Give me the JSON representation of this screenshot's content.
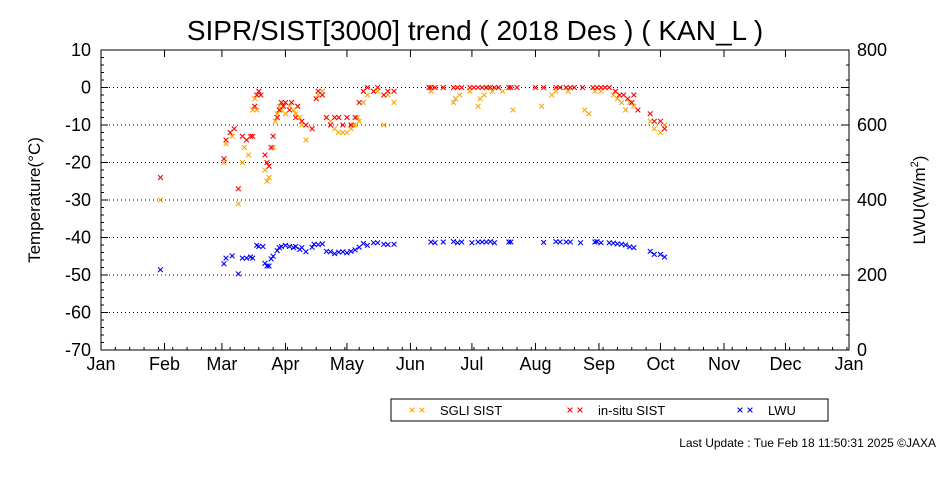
{
  "chart_data": {
    "type": "scatter",
    "title": "SIPR/SIST[3000] trend ( 2018 Des ) ( KAN_L )",
    "xlabel": "",
    "ylabel": "Temperature(°C)",
    "y2label_main": "LWU(W/m",
    "y2label_sup": "2",
    "y2label_close": ")",
    "xlim": [
      0,
      365
    ],
    "ylim": [
      -70,
      10
    ],
    "y2lim": [
      0,
      800
    ],
    "grid": true,
    "grid_style": "dotted",
    "legend_position": "bottom-right",
    "x_ticks": [
      {
        "label": "Jan",
        "x": 0
      },
      {
        "label": "Feb",
        "x": 31
      },
      {
        "label": "Mar",
        "x": 59
      },
      {
        "label": "Apr",
        "x": 90
      },
      {
        "label": "May",
        "x": 120
      },
      {
        "label": "Jun",
        "x": 151
      },
      {
        "label": "Jul",
        "x": 181
      },
      {
        "label": "Aug",
        "x": 212
      },
      {
        "label": "Sep",
        "x": 243
      },
      {
        "label": "Oct",
        "x": 273
      },
      {
        "label": "Nov",
        "x": 304
      },
      {
        "label": "Dec",
        "x": 334
      },
      {
        "label": "Jan",
        "x": 365
      }
    ],
    "y_ticks": [
      10,
      0,
      -10,
      -20,
      -30,
      -40,
      -50,
      -60,
      -70
    ],
    "y2_ticks": [
      800,
      600,
      400,
      200,
      0
    ],
    "series": [
      {
        "name": "SGLI SIST",
        "axis": "left",
        "color": "#ffa500",
        "marker": "x",
        "points": [
          [
            29,
            -30
          ],
          [
            60,
            -20
          ],
          [
            61,
            -15
          ],
          [
            64,
            -13
          ],
          [
            67,
            -31
          ],
          [
            69,
            -20
          ],
          [
            70,
            -16
          ],
          [
            72,
            -18
          ],
          [
            74,
            -6
          ],
          [
            75,
            -3
          ],
          [
            76,
            -6
          ],
          [
            80,
            -22
          ],
          [
            81,
            -25
          ],
          [
            82,
            -24
          ],
          [
            84,
            -16
          ],
          [
            85,
            -9
          ],
          [
            86,
            -7
          ],
          [
            87,
            -5
          ],
          [
            88,
            -6
          ],
          [
            89,
            -5
          ],
          [
            90,
            -7
          ],
          [
            92,
            -5
          ],
          [
            94,
            -6
          ],
          [
            95,
            -7
          ],
          [
            96,
            -5
          ],
          [
            97,
            -8
          ],
          [
            98,
            -10
          ],
          [
            100,
            -14
          ],
          [
            103,
            -11
          ],
          [
            106,
            -2
          ],
          [
            108,
            -1
          ],
          [
            110,
            -8
          ],
          [
            112,
            -9
          ],
          [
            114,
            -11
          ],
          [
            116,
            -12
          ],
          [
            118,
            -12
          ],
          [
            120,
            -12
          ],
          [
            122,
            -11
          ],
          [
            123,
            -10
          ],
          [
            124,
            -10
          ],
          [
            125,
            -8
          ],
          [
            126,
            -9
          ],
          [
            128,
            -4
          ],
          [
            130,
            -2
          ],
          [
            133,
            -1
          ],
          [
            135,
            -1
          ],
          [
            138,
            -10
          ],
          [
            140,
            -2
          ],
          [
            143,
            -4
          ],
          [
            161,
            -1
          ],
          [
            163,
            0
          ],
          [
            167,
            0
          ],
          [
            172,
            -4
          ],
          [
            173,
            -3
          ],
          [
            175,
            -2
          ],
          [
            180,
            -1
          ],
          [
            184,
            -5
          ],
          [
            185,
            -3
          ],
          [
            187,
            -2
          ],
          [
            189,
            0
          ],
          [
            191,
            -1
          ],
          [
            196,
            -1
          ],
          [
            201,
            -6
          ],
          [
            215,
            -5
          ],
          [
            220,
            -2
          ],
          [
            222,
            -1
          ],
          [
            228,
            -1
          ],
          [
            236,
            -6
          ],
          [
            238,
            -7
          ],
          [
            241,
            -1
          ],
          [
            244,
            -1
          ],
          [
            250,
            -2
          ],
          [
            252,
            -3
          ],
          [
            254,
            -4
          ],
          [
            256,
            -6
          ],
          [
            258,
            -4
          ],
          [
            260,
            -5
          ],
          [
            268,
            -9
          ],
          [
            270,
            -11
          ],
          [
            273,
            -12
          ],
          [
            275,
            -10
          ]
        ]
      },
      {
        "name": "in-situ SIST",
        "axis": "left",
        "color": "#ff0000",
        "marker": "x",
        "points": [
          [
            29,
            -24
          ],
          [
            60,
            -19
          ],
          [
            61,
            -14
          ],
          [
            63,
            -12
          ],
          [
            65,
            -11
          ],
          [
            67,
            -27
          ],
          [
            69,
            -13
          ],
          [
            71,
            -14
          ],
          [
            73,
            -13
          ],
          [
            74,
            -13
          ],
          [
            75,
            -5
          ],
          [
            76,
            -2
          ],
          [
            77,
            -1
          ],
          [
            78,
            -2
          ],
          [
            80,
            -18
          ],
          [
            81,
            -20
          ],
          [
            82,
            -21
          ],
          [
            83,
            -16
          ],
          [
            84,
            -13
          ],
          [
            86,
            -8
          ],
          [
            87,
            -6
          ],
          [
            88,
            -4
          ],
          [
            89,
            -5
          ],
          [
            90,
            -4
          ],
          [
            92,
            -6
          ],
          [
            93,
            -4
          ],
          [
            95,
            -8
          ],
          [
            96,
            -5
          ],
          [
            98,
            -9
          ],
          [
            100,
            -10
          ],
          [
            103,
            -11
          ],
          [
            105,
            -3
          ],
          [
            106,
            -1
          ],
          [
            108,
            -2
          ],
          [
            110,
            -8
          ],
          [
            112,
            -10
          ],
          [
            114,
            -8
          ],
          [
            116,
            -8
          ],
          [
            118,
            -10
          ],
          [
            120,
            -8
          ],
          [
            122,
            -10
          ],
          [
            124,
            -8
          ],
          [
            126,
            -4
          ],
          [
            128,
            -1
          ],
          [
            130,
            0
          ],
          [
            133,
            -1
          ],
          [
            135,
            0
          ],
          [
            138,
            -2
          ],
          [
            140,
            -1
          ],
          [
            143,
            -1
          ],
          [
            160,
            0
          ],
          [
            161,
            0
          ],
          [
            163,
            0
          ],
          [
            167,
            0
          ],
          [
            172,
            0
          ],
          [
            174,
            0
          ],
          [
            176,
            0
          ],
          [
            180,
            0
          ],
          [
            182,
            0
          ],
          [
            184,
            0
          ],
          [
            186,
            0
          ],
          [
            188,
            0
          ],
          [
            190,
            0
          ],
          [
            192,
            0
          ],
          [
            194,
            0
          ],
          [
            199,
            0
          ],
          [
            200,
            0
          ],
          [
            203,
            0
          ],
          [
            212,
            0
          ],
          [
            216,
            0
          ],
          [
            222,
            0
          ],
          [
            224,
            0
          ],
          [
            227,
            0
          ],
          [
            229,
            0
          ],
          [
            231,
            0
          ],
          [
            235,
            0
          ],
          [
            240,
            0
          ],
          [
            242,
            0
          ],
          [
            244,
            0
          ],
          [
            246,
            0
          ],
          [
            248,
            0
          ],
          [
            251,
            -1
          ],
          [
            253,
            -2
          ],
          [
            255,
            -2
          ],
          [
            257,
            -3
          ],
          [
            259,
            -4
          ],
          [
            260,
            -2
          ],
          [
            262,
            -6
          ],
          [
            268,
            -7
          ],
          [
            270,
            -9
          ],
          [
            273,
            -9
          ],
          [
            275,
            -11
          ]
        ]
      },
      {
        "name": "LWU",
        "axis": "right",
        "color": "#0000ff",
        "marker": "x",
        "points": [
          [
            29,
            214
          ],
          [
            60,
            230
          ],
          [
            61,
            245
          ],
          [
            64,
            251
          ],
          [
            67,
            203
          ],
          [
            69,
            245
          ],
          [
            71,
            245
          ],
          [
            73,
            248
          ],
          [
            74,
            245
          ],
          [
            76,
            279
          ],
          [
            77,
            276
          ],
          [
            79,
            276
          ],
          [
            80,
            231
          ],
          [
            81,
            224
          ],
          [
            82,
            224
          ],
          [
            83,
            243
          ],
          [
            84,
            250
          ],
          [
            86,
            265
          ],
          [
            87,
            273
          ],
          [
            88,
            276
          ],
          [
            90,
            279
          ],
          [
            92,
            276
          ],
          [
            94,
            273
          ],
          [
            95,
            276
          ],
          [
            97,
            268
          ],
          [
            98,
            273
          ],
          [
            100,
            262
          ],
          [
            103,
            274
          ],
          [
            104,
            282
          ],
          [
            106,
            281
          ],
          [
            108,
            283
          ],
          [
            110,
            263
          ],
          [
            112,
            262
          ],
          [
            114,
            257
          ],
          [
            116,
            261
          ],
          [
            118,
            262
          ],
          [
            120,
            259
          ],
          [
            122,
            263
          ],
          [
            124,
            267
          ],
          [
            126,
            274
          ],
          [
            128,
            284
          ],
          [
            130,
            279
          ],
          [
            133,
            286
          ],
          [
            135,
            286
          ],
          [
            138,
            282
          ],
          [
            140,
            281
          ],
          [
            143,
            282
          ],
          [
            161,
            288
          ],
          [
            163,
            286
          ],
          [
            167,
            288
          ],
          [
            172,
            289
          ],
          [
            174,
            286
          ],
          [
            176,
            288
          ],
          [
            181,
            286
          ],
          [
            184,
            288
          ],
          [
            186,
            288
          ],
          [
            188,
            288
          ],
          [
            190,
            289
          ],
          [
            192,
            286
          ],
          [
            199,
            288
          ],
          [
            200,
            288
          ],
          [
            216,
            287
          ],
          [
            222,
            289
          ],
          [
            224,
            288
          ],
          [
            227,
            288
          ],
          [
            229,
            288
          ],
          [
            234,
            286
          ],
          [
            241,
            288
          ],
          [
            242,
            289
          ],
          [
            244,
            286
          ],
          [
            248,
            286
          ],
          [
            250,
            285
          ],
          [
            252,
            283
          ],
          [
            254,
            282
          ],
          [
            256,
            280
          ],
          [
            258,
            275
          ],
          [
            260,
            273
          ],
          [
            268,
            263
          ],
          [
            270,
            255
          ],
          [
            273,
            255
          ],
          [
            275,
            248
          ]
        ]
      }
    ]
  },
  "footer": "Last Update : Tue Feb 18 11:50:31 2025  ©JAXA"
}
